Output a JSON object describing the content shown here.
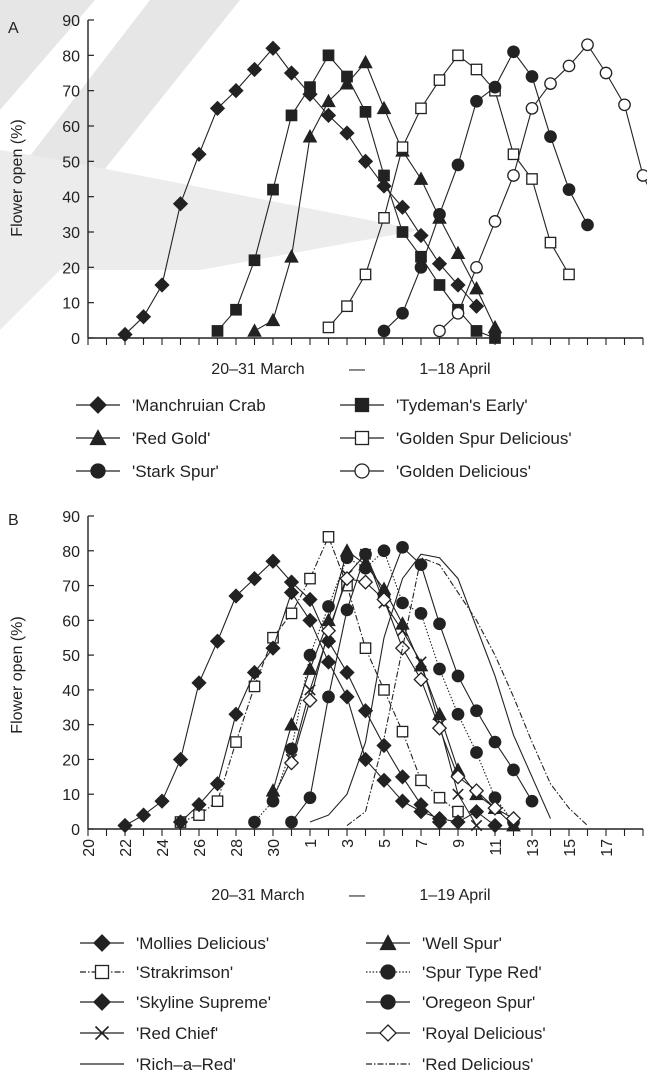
{
  "chart_data": [
    {
      "panel": "A",
      "type": "line",
      "ylabel": "Flower open (%)",
      "xlabel": "20–31 March   —   1–18 April",
      "xlabel_left": "20–31 March",
      "xlabel_dash": "—",
      "xlabel_right": "1–18 April",
      "ylim": [
        0,
        90
      ],
      "yticks": [
        0,
        10,
        20,
        30,
        40,
        50,
        60,
        70,
        80,
        90
      ],
      "x_index_range": [
        0,
        30
      ],
      "show_xtick_labels": false,
      "series": [
        {
          "name": "'Manchruian Crab",
          "marker": "diamond",
          "fill": "#222",
          "line": "solid",
          "x": [
            2,
            3,
            4,
            5,
            6,
            7,
            8,
            9,
            10,
            11,
            12,
            13,
            14,
            15,
            16,
            17,
            18,
            19,
            20,
            21
          ],
          "y": [
            1,
            6,
            15,
            38,
            52,
            65,
            70,
            76,
            82,
            75,
            69,
            63,
            58,
            50,
            43,
            37,
            29,
            21,
            15,
            9
          ]
        },
        {
          "name": "'Tydeman's Early'",
          "marker": "square",
          "fill": "#222",
          "line": "solid",
          "x": [
            7,
            8,
            9,
            10,
            11,
            12,
            13,
            14,
            15,
            16,
            17,
            18,
            19,
            20,
            21,
            22
          ],
          "y": [
            2,
            8,
            22,
            42,
            63,
            71,
            80,
            74,
            64,
            46,
            30,
            23,
            15,
            8,
            2,
            0
          ]
        },
        {
          "name": "'Red Gold'",
          "marker": "triangle",
          "fill": "#222",
          "line": "solid",
          "x": [
            9,
            10,
            11,
            12,
            13,
            14,
            15,
            16,
            17,
            18,
            19,
            20,
            21,
            22
          ],
          "y": [
            2,
            5,
            23,
            57,
            67,
            72,
            78,
            65,
            53,
            45,
            34,
            24,
            14,
            3
          ]
        },
        {
          "name": "'Golden Spur Delicious'",
          "marker": "square",
          "fill": "#fff",
          "line": "solid",
          "x": [
            13,
            14,
            15,
            16,
            17,
            18,
            19,
            20,
            21,
            22,
            23,
            24,
            25,
            26
          ],
          "y": [
            3,
            9,
            18,
            34,
            54,
            65,
            73,
            80,
            76,
            70,
            52,
            45,
            27,
            18
          ]
        },
        {
          "name": "'Stark Spur'",
          "marker": "circle",
          "fill": "#222",
          "line": "solid",
          "x": [
            16,
            17,
            18,
            19,
            20,
            21,
            22,
            23,
            24,
            25,
            26,
            27
          ],
          "y": [
            2,
            7,
            20,
            35,
            49,
            67,
            71,
            81,
            74,
            57,
            42,
            32
          ]
        },
        {
          "name": "'Golden Delicious'",
          "marker": "circle",
          "fill": "#fff",
          "line": "solid",
          "x": [
            19,
            20,
            21,
            22,
            23,
            24,
            25,
            26,
            27,
            28,
            29,
            30,
            31,
            32
          ],
          "y": [
            2,
            7,
            20,
            33,
            46,
            65,
            72,
            77,
            83,
            75,
            66,
            46,
            35,
            21
          ]
        }
      ]
    },
    {
      "panel": "B",
      "type": "line",
      "ylabel": "Flower open (%)",
      "xlabel": "20–31 March   —   1–19 April",
      "xlabel_left": "20–31 March",
      "xlabel_dash": "—",
      "xlabel_right": "1–19 April",
      "ylim": [
        0,
        90
      ],
      "yticks": [
        0,
        10,
        20,
        30,
        40,
        50,
        60,
        70,
        80,
        90
      ],
      "x_index_range": [
        0,
        30
      ],
      "xtick_labels": [
        "20",
        "22",
        "24",
        "26",
        "28",
        "30",
        "1",
        "3",
        "5",
        "7",
        "9",
        "11",
        "13",
        "15",
        "17"
      ],
      "series": [
        {
          "name": "'Mollies Delicious'",
          "marker": "diamond",
          "fill": "#222",
          "line": "solid",
          "x": [
            2,
            3,
            4,
            5,
            6,
            7,
            8,
            9,
            10,
            11,
            12,
            13,
            14,
            15,
            16,
            17,
            18,
            19
          ],
          "y": [
            1,
            4,
            8,
            20,
            42,
            54,
            67,
            72,
            77,
            71,
            66,
            54,
            45,
            34,
            24,
            15,
            7,
            2
          ]
        },
        {
          "name": "'Strakrimson'",
          "marker": "square",
          "fill": "#fff",
          "line": "dashdot",
          "x": [
            5,
            6,
            7,
            8,
            9,
            10,
            11,
            12,
            13,
            14,
            15,
            16,
            17,
            18,
            19,
            20
          ],
          "y": [
            2,
            4,
            8,
            25,
            41,
            55,
            62,
            72,
            84,
            70,
            52,
            40,
            28,
            14,
            9,
            5
          ]
        },
        {
          "name": "'Skyline  Supreme'",
          "marker": "diamond",
          "fill": "#222",
          "line": "solid",
          "x": [
            5,
            6,
            7,
            8,
            9,
            10,
            11,
            12,
            13,
            14,
            15,
            16,
            17,
            18,
            19,
            20,
            21,
            22
          ],
          "y": [
            2,
            7,
            13,
            33,
            45,
            52,
            68,
            60,
            48,
            38,
            20,
            14,
            8,
            5,
            3,
            2,
            5,
            1
          ]
        },
        {
          "name": "'Red Chief'",
          "marker": "x",
          "fill": "#222",
          "line": "solid",
          "x": [
            10,
            11,
            12,
            13,
            14,
            15,
            16,
            17,
            18,
            19,
            20,
            21
          ],
          "y": [
            9,
            20,
            40,
            56,
            73,
            79,
            65,
            57,
            48,
            30,
            10,
            1
          ]
        },
        {
          "name": "'Rich–a–Red'",
          "marker": "none",
          "fill": "#222",
          "line": "solid",
          "x": [
            12,
            13,
            14,
            15,
            16,
            17,
            18,
            19,
            20,
            21,
            22,
            23,
            24,
            25
          ],
          "y": [
            2,
            4,
            10,
            25,
            55,
            72,
            79,
            78,
            72,
            58,
            44,
            27,
            15,
            3
          ]
        },
        {
          "name": "'Well Spur'",
          "marker": "triangle",
          "fill": "#222",
          "line": "solid",
          "x": [
            10,
            11,
            12,
            13,
            14,
            15,
            16,
            17,
            18,
            19,
            20,
            21,
            22,
            23
          ],
          "y": [
            11,
            30,
            46,
            60,
            80,
            76,
            69,
            59,
            47,
            33,
            17,
            10,
            6,
            1
          ]
        },
        {
          "name": "'Spur Type Red'",
          "marker": "circle",
          "fill": "#222",
          "line": "dotted",
          "x": [
            9,
            10,
            11,
            12,
            13,
            14,
            15,
            16,
            17,
            18,
            19,
            20,
            21,
            22,
            23
          ],
          "y": [
            2,
            8,
            23,
            50,
            64,
            78,
            75,
            80,
            65,
            62,
            46,
            33,
            22,
            9,
            2
          ]
        },
        {
          "name": "'Oregeon Spur'",
          "marker": "circle",
          "fill": "#222",
          "line": "solid",
          "x": [
            11,
            12,
            13,
            14,
            15,
            16,
            17,
            18,
            19,
            20,
            21,
            22,
            23,
            24
          ],
          "y": [
            2,
            9,
            38,
            63,
            79,
            67,
            81,
            76,
            59,
            44,
            34,
            25,
            17,
            8
          ]
        },
        {
          "name": "'Royal Delicious'",
          "marker": "diamond",
          "fill": "#fff",
          "line": "solid",
          "x": [
            11,
            12,
            13,
            14,
            15,
            16,
            17,
            18,
            19,
            20,
            21,
            22,
            23
          ],
          "y": [
            19,
            37,
            57,
            72,
            71,
            66,
            52,
            43,
            29,
            15,
            11,
            6,
            3
          ]
        },
        {
          "name": "'Red Delicious'",
          "marker": "none",
          "fill": "#222",
          "line": "dashdot",
          "x": [
            14,
            15,
            16,
            17,
            18,
            19,
            20,
            21,
            22,
            23,
            24,
            25,
            26,
            27
          ],
          "y": [
            1,
            5,
            26,
            52,
            78,
            76,
            68,
            60,
            50,
            38,
            25,
            13,
            6,
            1
          ]
        }
      ]
    }
  ]
}
